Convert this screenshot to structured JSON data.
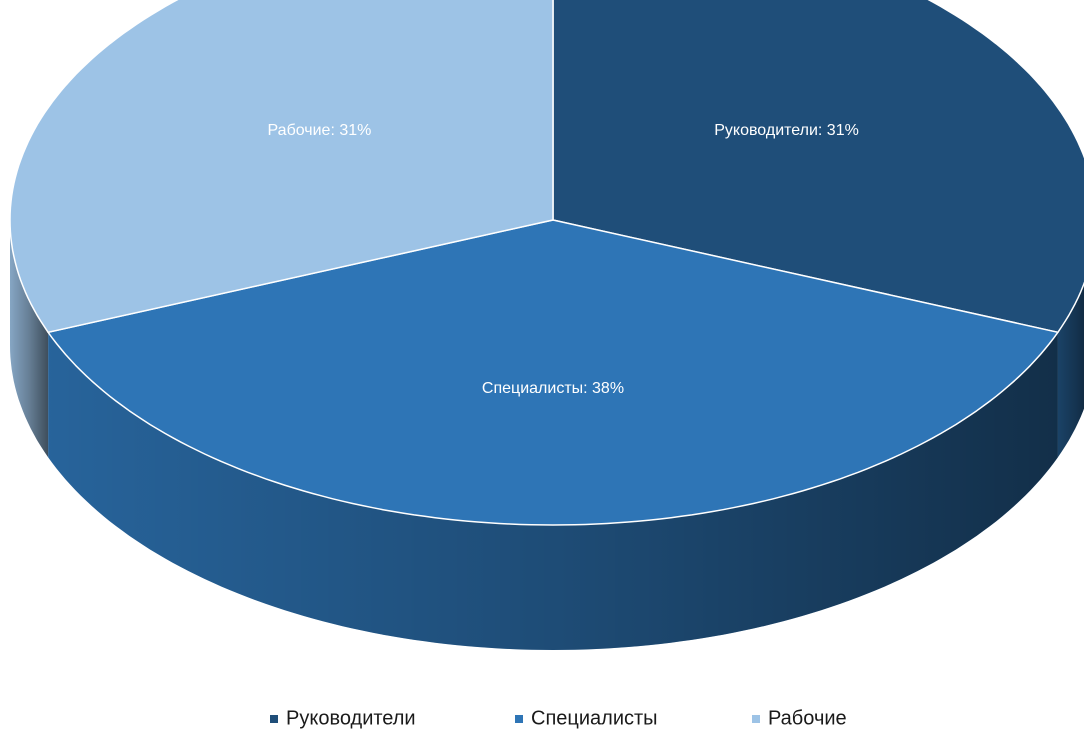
{
  "chart_data": {
    "type": "pie3d",
    "categories": [
      "Руководители",
      "Специалисты",
      "Рабочие"
    ],
    "values": [
      31,
      38,
      31
    ],
    "value_labels": [
      "Руководители: 31%",
      "Специалисты: 38%",
      "Рабочие: 31%"
    ],
    "colors": [
      "#1f4e79",
      "#2e75b6",
      "#9dc3e6"
    ],
    "legend": "bottom"
  }
}
